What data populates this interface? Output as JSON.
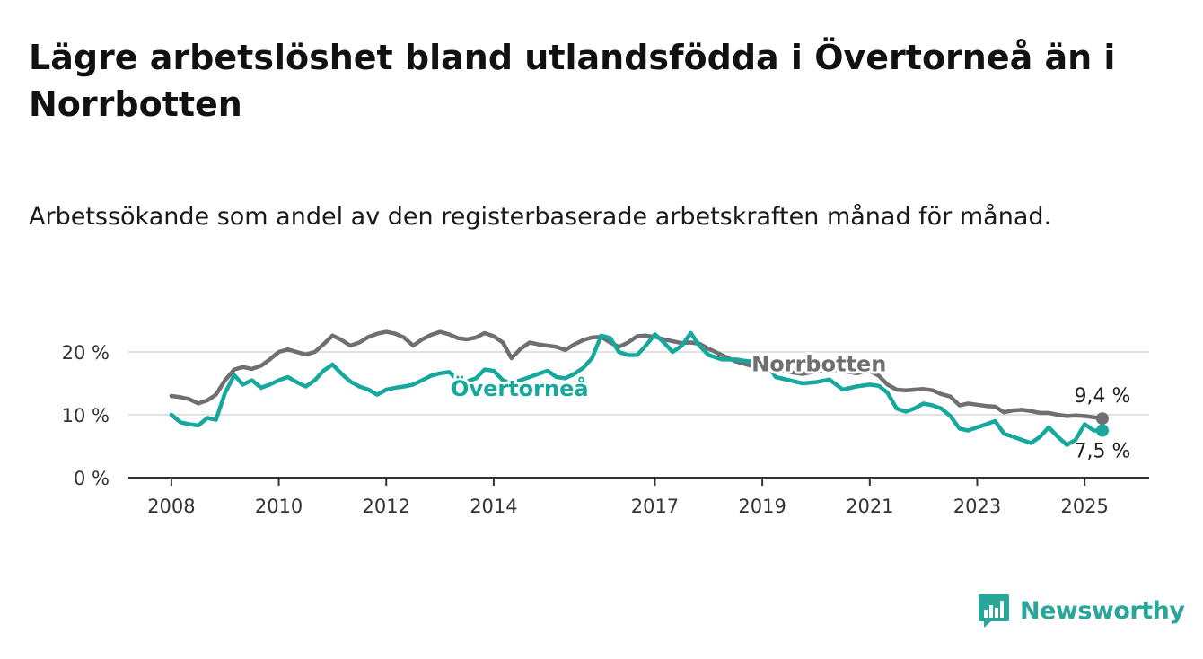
{
  "title": "Lägre arbetslöshet bland utlandsfödda i Övertorneå än i Norrbotten",
  "subtitle": "Arbetssökande som andel av den registerbaserade arbetskraften månad för månad.",
  "brand": {
    "name": "Newsworthy",
    "icon": "newsworthy-logo-icon",
    "color": "#2aa59a"
  },
  "chart_data": {
    "type": "line",
    "title": "Lägre arbetslöshet bland utlandsfödda i Övertorneå än i Norrbotten",
    "xlabel": "",
    "ylabel": "",
    "ylim": [
      0,
      20
    ],
    "xlim": [
      2007.2,
      2026.2
    ],
    "grid": true,
    "y_ticks": [
      {
        "value": 0,
        "label": "0 %"
      },
      {
        "value": 10,
        "label": "10 %"
      },
      {
        "value": 20,
        "label": "20 %"
      }
    ],
    "x_ticks": [
      {
        "value": 2008,
        "label": "2008"
      },
      {
        "value": 2010,
        "label": "2010"
      },
      {
        "value": 2012,
        "label": "2012"
      },
      {
        "value": 2014,
        "label": "2014"
      },
      {
        "value": 2017,
        "label": "2017"
      },
      {
        "value": 2019,
        "label": "2019"
      },
      {
        "value": 2021,
        "label": "2021"
      },
      {
        "value": 2023,
        "label": "2023"
      },
      {
        "value": 2025,
        "label": "2025"
      }
    ],
    "series": [
      {
        "name": "Norrbotten",
        "color": "#6e6e73",
        "end_label": "9,4 %",
        "x": [
          2008.0,
          2008.17,
          2008.33,
          2008.5,
          2008.67,
          2008.83,
          2009.0,
          2009.17,
          2009.33,
          2009.5,
          2009.67,
          2009.83,
          2010.0,
          2010.17,
          2010.33,
          2010.5,
          2010.67,
          2010.83,
          2011.0,
          2011.17,
          2011.33,
          2011.5,
          2011.67,
          2011.83,
          2012.0,
          2012.17,
          2012.33,
          2012.5,
          2012.67,
          2012.83,
          2013.0,
          2013.17,
          2013.33,
          2013.5,
          2013.67,
          2013.83,
          2014.0,
          2014.17,
          2014.33,
          2014.5,
          2014.67,
          2014.83,
          2015.0,
          2015.17,
          2015.33,
          2015.5,
          2015.67,
          2015.83,
          2016.0,
          2016.17,
          2016.33,
          2016.5,
          2016.67,
          2016.83,
          2017.0,
          2017.17,
          2017.33,
          2017.5,
          2017.67,
          2017.83,
          2018.0,
          2018.25,
          2018.5,
          2018.75,
          2019.0,
          2019.25,
          2019.5,
          2019.75,
          2020.0,
          2020.25,
          2020.5,
          2020.75,
          2021.0,
          2021.17,
          2021.33,
          2021.5,
          2021.67,
          2021.83,
          2022.0,
          2022.17,
          2022.33,
          2022.5,
          2022.67,
          2022.83,
          2023.0,
          2023.17,
          2023.33,
          2023.5,
          2023.67,
          2023.83,
          2024.0,
          2024.17,
          2024.33,
          2024.5,
          2024.67,
          2024.83,
          2025.0,
          2025.17,
          2025.33
        ],
        "y": [
          13.0,
          12.8,
          12.5,
          11.8,
          12.3,
          13.2,
          15.5,
          17.2,
          17.6,
          17.3,
          17.8,
          18.8,
          20.0,
          20.4,
          20.0,
          19.6,
          20.0,
          21.2,
          22.6,
          21.9,
          21.0,
          21.5,
          22.4,
          22.9,
          23.2,
          22.9,
          22.3,
          21.0,
          22.0,
          22.7,
          23.2,
          22.8,
          22.2,
          22.0,
          22.3,
          23.0,
          22.5,
          21.5,
          19.0,
          20.5,
          21.5,
          21.2,
          21.0,
          20.8,
          20.3,
          21.2,
          21.9,
          22.3,
          22.4,
          21.5,
          20.8,
          21.5,
          22.5,
          22.6,
          22.4,
          22.0,
          21.7,
          21.4,
          21.5,
          21.3,
          20.5,
          19.5,
          18.5,
          17.9,
          17.5,
          17.2,
          16.8,
          16.5,
          16.9,
          17.3,
          17.0,
          16.6,
          17.0,
          16.2,
          14.8,
          14.0,
          13.9,
          14.0,
          14.1,
          13.9,
          13.3,
          12.9,
          11.5,
          11.8,
          11.6,
          11.4,
          11.3,
          10.4,
          10.7,
          10.8,
          10.6,
          10.3,
          10.3,
          10.0,
          9.8,
          9.9,
          9.8,
          9.6,
          9.4
        ]
      },
      {
        "name": "Övertorneå",
        "color": "#16a89d",
        "end_label": "7,5 %",
        "x": [
          2008.0,
          2008.17,
          2008.33,
          2008.5,
          2008.67,
          2008.83,
          2009.0,
          2009.17,
          2009.33,
          2009.5,
          2009.67,
          2009.83,
          2010.0,
          2010.17,
          2010.33,
          2010.5,
          2010.67,
          2010.83,
          2011.0,
          2011.17,
          2011.33,
          2011.5,
          2011.67,
          2011.83,
          2012.0,
          2012.17,
          2012.33,
          2012.5,
          2012.67,
          2012.83,
          2013.0,
          2013.17,
          2013.33,
          2013.5,
          2013.67,
          2013.83,
          2014.0,
          2014.17,
          2014.33,
          2014.5,
          2014.67,
          2014.83,
          2015.0,
          2015.17,
          2015.33,
          2015.5,
          2015.67,
          2015.83,
          2016.0,
          2016.17,
          2016.33,
          2016.5,
          2016.67,
          2016.83,
          2017.0,
          2017.17,
          2017.33,
          2017.5,
          2017.67,
          2017.83,
          2018.0,
          2018.25,
          2018.5,
          2018.75,
          2019.0,
          2019.25,
          2019.5,
          2019.75,
          2020.0,
          2020.25,
          2020.5,
          2020.75,
          2021.0,
          2021.17,
          2021.33,
          2021.5,
          2021.67,
          2021.83,
          2022.0,
          2022.17,
          2022.33,
          2022.5,
          2022.67,
          2022.83,
          2023.0,
          2023.17,
          2023.33,
          2023.5,
          2023.67,
          2023.83,
          2024.0,
          2024.17,
          2024.33,
          2024.5,
          2024.67,
          2024.83,
          2025.0,
          2025.17,
          2025.33
        ],
        "y": [
          10.0,
          8.8,
          8.5,
          8.3,
          9.5,
          9.2,
          13.5,
          16.3,
          14.8,
          15.5,
          14.3,
          14.8,
          15.5,
          16.0,
          15.2,
          14.5,
          15.5,
          17.0,
          18.0,
          16.5,
          15.3,
          14.5,
          14.0,
          13.2,
          14.0,
          14.3,
          14.5,
          14.8,
          15.5,
          16.2,
          16.6,
          16.8,
          15.6,
          15.3,
          15.8,
          17.2,
          17.0,
          15.5,
          15.0,
          15.5,
          16.0,
          16.5,
          17.0,
          16.0,
          15.8,
          16.5,
          17.5,
          19.0,
          22.6,
          22.2,
          20.0,
          19.5,
          19.5,
          21.0,
          22.8,
          21.5,
          20.0,
          21.0,
          23.0,
          21.0,
          19.5,
          18.8,
          18.8,
          18.5,
          19.2,
          16.0,
          15.5,
          15.0,
          15.2,
          15.6,
          14.0,
          14.5,
          14.8,
          14.6,
          13.5,
          11.0,
          10.5,
          11.0,
          11.8,
          11.5,
          11.0,
          9.8,
          7.8,
          7.5,
          8.0,
          8.5,
          9.0,
          7.0,
          6.5,
          6.0,
          5.5,
          6.5,
          8.0,
          6.5,
          5.2,
          6.0,
          8.5,
          7.5,
          7.5
        ]
      }
    ]
  }
}
